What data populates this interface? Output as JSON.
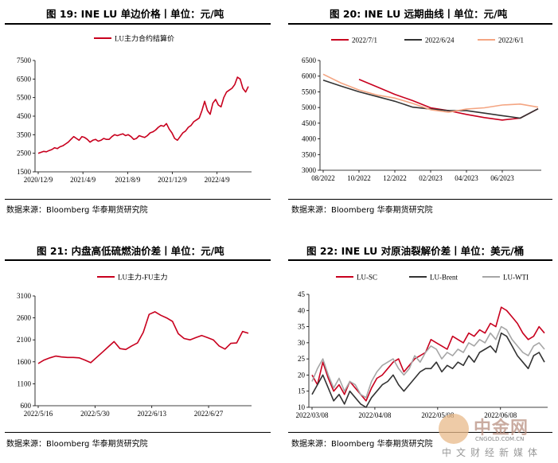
{
  "panels": [
    {
      "title": "图 19: INE LU 单边价格丨单位：元/吨",
      "source": "数据来源：Bloomberg 华泰期货研究院"
    },
    {
      "title": "图 20: INE LU 远期曲线丨单位：元/吨",
      "source": "数据来源：Bloomberg 华泰期货研究院"
    },
    {
      "title": "图 21: 内盘高低硫燃油价差丨单位：元/吨",
      "source": "数据来源：Bloomberg 华泰期货研究院"
    },
    {
      "title": "图 22: INE LU 对原油裂解价差丨单位：美元/桶",
      "source": "数据来源：Bloomberg 华泰期货研究院"
    }
  ],
  "watermark": {
    "name": "中金网",
    "site": "CNGOLD.COM.CN",
    "sub": "中文财经新媒体"
  },
  "chart_data": [
    {
      "type": "line",
      "ylim": [
        1500,
        7500
      ],
      "yticks": [
        1500,
        2500,
        3500,
        4500,
        5500,
        6500,
        7500
      ],
      "xticks": [
        "2020/12/9",
        "2021/4/9",
        "2021/8/9",
        "2021/12/9",
        "2022/4/9"
      ],
      "colors": [
        "#c8001e"
      ],
      "legend": "top",
      "series": [
        {
          "name": "LU主力合约结算价",
          "values": [
            2500,
            2550,
            2600,
            2580,
            2650,
            2700,
            2800,
            2750,
            2850,
            2900,
            3000,
            3100,
            3250,
            3400,
            3300,
            3200,
            3400,
            3350,
            3250,
            3100,
            3200,
            3250,
            3150,
            3200,
            3300,
            3250,
            3250,
            3400,
            3500,
            3450,
            3500,
            3550,
            3450,
            3500,
            3400,
            3250,
            3300,
            3450,
            3400,
            3350,
            3450,
            3600,
            3650,
            3750,
            3900,
            4000,
            3950,
            4100,
            3800,
            3600,
            3300,
            3200,
            3400,
            3600,
            3700,
            3900,
            4000,
            4200,
            4300,
            4400,
            4800,
            5300,
            4800,
            4600,
            5200,
            5400,
            5100,
            5000,
            5500,
            5800,
            5900,
            6000,
            6200,
            6600,
            6500,
            6000,
            5800,
            6100
          ]
        }
      ]
    },
    {
      "type": "line",
      "ylim": [
        3000,
        6500
      ],
      "yticks": [
        3000,
        3500,
        4000,
        4500,
        5000,
        5500,
        6000,
        6500
      ],
      "xticks": [
        "08/2022",
        "10/2022",
        "12/2022",
        "02/2023",
        "04/2023",
        "06/2023"
      ],
      "colors": [
        "#c8001e",
        "#333333",
        "#f4a582"
      ],
      "legend": "top",
      "series": [
        {
          "name": "2022/7/1",
          "points": [
            [
              2,
              5900
            ],
            [
              3,
              5660
            ],
            [
              4,
              5420
            ],
            [
              5,
              5220
            ],
            [
              6,
              4990
            ],
            [
              7,
              4900
            ],
            [
              8,
              4780
            ],
            [
              9,
              4680
            ],
            [
              10,
              4600
            ],
            [
              11,
              4660
            ],
            [
              12,
              4960
            ]
          ]
        },
        {
          "name": "2022/6/24",
          "points": [
            [
              0,
              5870
            ],
            [
              1,
              5680
            ],
            [
              2,
              5500
            ],
            [
              3,
              5350
            ],
            [
              4,
              5200
            ],
            [
              5,
              5010
            ],
            [
              6,
              4950
            ],
            [
              7,
              4900
            ],
            [
              8,
              4900
            ],
            [
              9,
              4820
            ],
            [
              10,
              4740
            ],
            [
              11,
              4660
            ],
            [
              12,
              4960
            ]
          ]
        },
        {
          "name": "2022/6/1",
          "points": [
            [
              0,
              6060
            ],
            [
              1,
              5780
            ],
            [
              2,
              5560
            ],
            [
              3,
              5400
            ],
            [
              4,
              5300
            ],
            [
              5,
              5130
            ],
            [
              6,
              4930
            ],
            [
              7,
              4850
            ],
            [
              8,
              4950
            ],
            [
              9,
              4990
            ],
            [
              10,
              5080
            ],
            [
              11,
              5110
            ],
            [
              12,
              5010
            ]
          ]
        }
      ]
    },
    {
      "type": "line",
      "ylim": [
        600,
        3100
      ],
      "yticks": [
        600,
        1100,
        1600,
        2100,
        2600,
        3100
      ],
      "xticks": [
        "2022/5/16",
        "2022/5/30",
        "2022/6/13",
        "2022/6/27"
      ],
      "colors": [
        "#c8001e"
      ],
      "legend": "top",
      "series": [
        {
          "name": "LU主力-FU主力",
          "values": [
            1560,
            1640,
            1690,
            1730,
            1710,
            1700,
            1700,
            1690,
            1640,
            1580,
            1700,
            1820,
            1940,
            2060,
            1900,
            1880,
            1960,
            2030,
            2270,
            2680,
            2740,
            2660,
            2600,
            2520,
            2240,
            2130,
            2100,
            2150,
            2200,
            2150,
            2100,
            1960,
            1890,
            2020,
            2030,
            2290,
            2250
          ]
        }
      ]
    },
    {
      "type": "line",
      "ylim": [
        10,
        45
      ],
      "yticks": [
        10,
        15,
        20,
        25,
        30,
        35,
        40,
        45
      ],
      "xticks": [
        "2022/03/08",
        "2022/04/08",
        "2022/05/08",
        "2022/06/08"
      ],
      "colors": [
        "#c8001e",
        "#333333",
        "#a6a6a6"
      ],
      "legend": "top",
      "series": [
        {
          "name": "LU-SC",
          "values": [
            20,
            17,
            24,
            19,
            15,
            17,
            14,
            18,
            16,
            14,
            12,
            16,
            19,
            20,
            22,
            24,
            25,
            21,
            23,
            25,
            26,
            27,
            31,
            30,
            29,
            28,
            32,
            31,
            30,
            33,
            32,
            34,
            33,
            36,
            35,
            41,
            40,
            38,
            36,
            33,
            31,
            32,
            35,
            33
          ]
        },
        {
          "name": "LU-Brent",
          "values": [
            14,
            17,
            20,
            16,
            12,
            14,
            11,
            15,
            13,
            11,
            10,
            13,
            15,
            17,
            18,
            20,
            17,
            15,
            17,
            19,
            21,
            22,
            22,
            24,
            21,
            23,
            22,
            24,
            23,
            26,
            24,
            27,
            28,
            29,
            27,
            33,
            32,
            29,
            26,
            24,
            22,
            26,
            27,
            24
          ]
        },
        {
          "name": "LU-WTI",
          "values": [
            18,
            22,
            25,
            20,
            16,
            19,
            15,
            18,
            17,
            14,
            13,
            18,
            21,
            23,
            24,
            25,
            22,
            20,
            22,
            26,
            24,
            27,
            29,
            28,
            25,
            27,
            26,
            28,
            27,
            30,
            29,
            31,
            30,
            33,
            31,
            35,
            34,
            31,
            29,
            27,
            26,
            29,
            30,
            28
          ]
        }
      ]
    }
  ]
}
